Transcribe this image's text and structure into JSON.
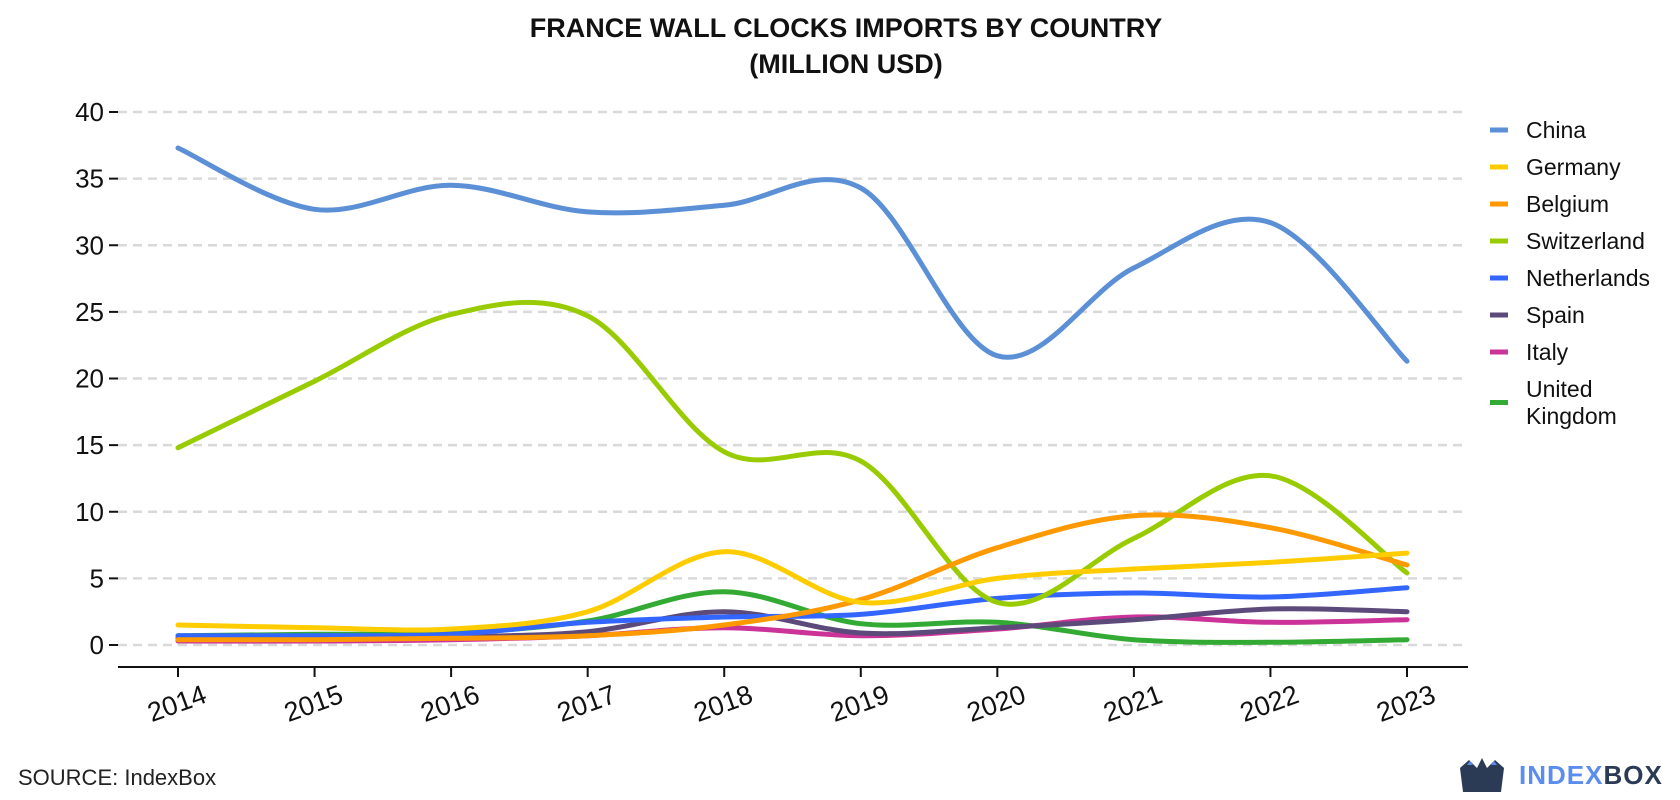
{
  "source_text": "SOURCE: IndexBox",
  "brand": {
    "part1": "INDEX",
    "part2": "BOX"
  },
  "chart_data": {
    "type": "line",
    "title_lines": [
      "FRANCE WALL CLOCKS IMPORTS BY COUNTRY",
      "(MILLION USD)"
    ],
    "xlabel": "",
    "ylabel": "",
    "x": [
      "2014",
      "2015",
      "2016",
      "2017",
      "2018",
      "2019",
      "2020",
      "2021",
      "2022",
      "2023"
    ],
    "ylim": [
      0,
      40
    ],
    "yticks": [
      0,
      5,
      10,
      15,
      20,
      25,
      30,
      35,
      40
    ],
    "grid": "horizontal dashed",
    "legend_position": "right",
    "series": [
      {
        "name": "China",
        "color": "#5b8fd6",
        "values": [
          37.3,
          32.7,
          34.5,
          32.5,
          33.0,
          34.3,
          21.7,
          28.3,
          31.7,
          21.3
        ]
      },
      {
        "name": "Germany",
        "color": "#ffcc00",
        "values": [
          1.5,
          1.3,
          1.2,
          2.5,
          7.0,
          3.2,
          5.0,
          5.7,
          6.2,
          6.9
        ]
      },
      {
        "name": "Belgium",
        "color": "#ff9900",
        "values": [
          0.4,
          0.4,
          0.5,
          0.7,
          1.5,
          3.4,
          7.3,
          9.7,
          8.8,
          6.0
        ]
      },
      {
        "name": "Switzerland",
        "color": "#99cc00",
        "values": [
          14.8,
          19.8,
          24.8,
          24.7,
          14.5,
          13.8,
          3.2,
          8.0,
          12.7,
          5.4
        ]
      },
      {
        "name": "Netherlands",
        "color": "#3366ff",
        "values": [
          0.7,
          0.7,
          0.8,
          1.7,
          2.1,
          2.3,
          3.5,
          3.9,
          3.6,
          4.3
        ]
      },
      {
        "name": "Spain",
        "color": "#5c4a7a",
        "values": [
          0.5,
          0.5,
          0.6,
          1.0,
          2.5,
          0.9,
          1.3,
          1.9,
          2.7,
          2.5
        ]
      },
      {
        "name": "Italy",
        "color": "#cc3399",
        "values": [
          0.3,
          0.3,
          0.4,
          0.7,
          1.3,
          0.7,
          1.2,
          2.1,
          1.7,
          1.9
        ]
      },
      {
        "name": "United Kingdom",
        "color": "#33aa33",
        "values": [
          0.7,
          0.8,
          0.9,
          1.8,
          4.0,
          1.6,
          1.7,
          0.4,
          0.2,
          0.4
        ]
      }
    ]
  }
}
